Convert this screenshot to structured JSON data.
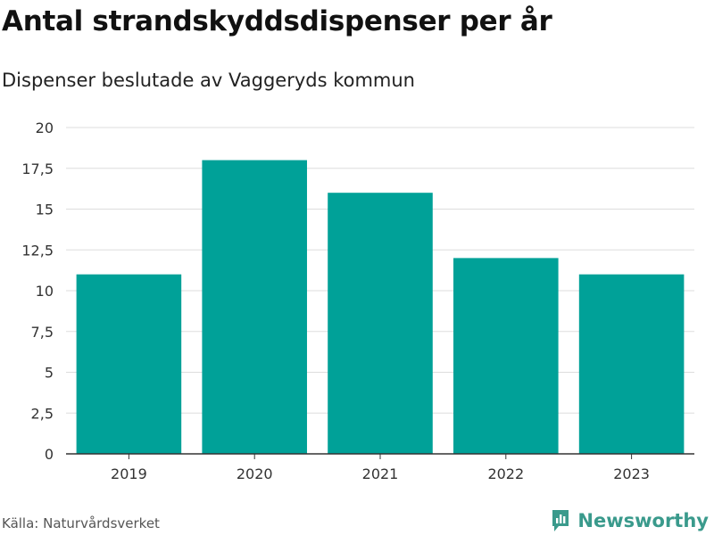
{
  "title": "Antal strandskyddsdispenser per år",
  "subtitle": "Dispenser beslutade av Vaggeryds kommun",
  "source": "Källa: Naturvårdsverket",
  "brand": "Newsworthy",
  "colors": {
    "bar": "#00a198",
    "grid": "#dddddd",
    "axis": "#333333",
    "brand": "#3a9a8c"
  },
  "icons": {
    "brand": "newsworthy-logo-icon"
  },
  "chart_data": {
    "type": "bar",
    "categories": [
      "2019",
      "2020",
      "2021",
      "2022",
      "2023"
    ],
    "values": [
      11,
      18,
      16,
      12,
      11
    ],
    "ylim": [
      0,
      20
    ],
    "yticks": [
      0,
      2.5,
      5,
      7.5,
      10,
      12.5,
      15,
      17.5,
      20
    ],
    "ytick_labels": [
      "0",
      "2,5",
      "5",
      "7,5",
      "10",
      "12,5",
      "15",
      "17,5",
      "20"
    ],
    "grid": true,
    "legend": "none",
    "xlabel": "",
    "ylabel": ""
  }
}
